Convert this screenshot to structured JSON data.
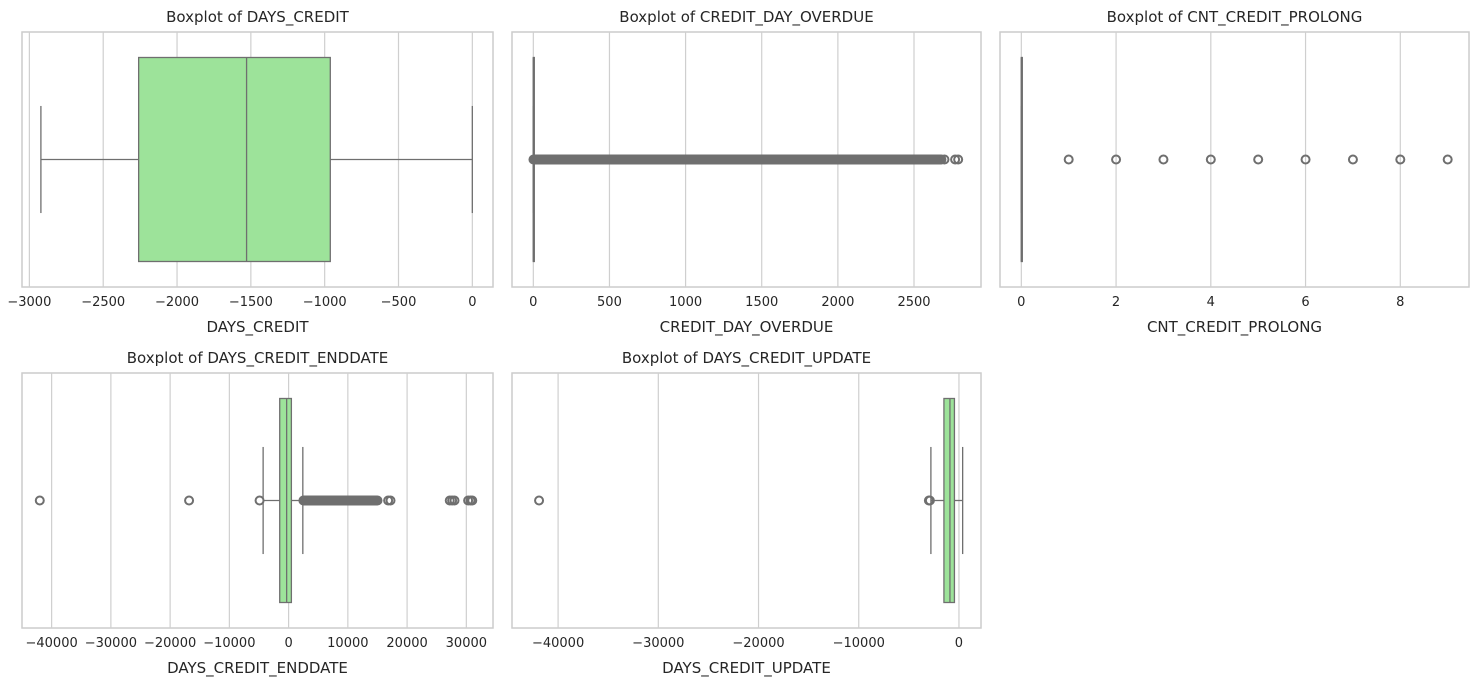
{
  "style": {
    "box_color": "#9de39a",
    "line_color": "#6f6f6f",
    "grid_color": "#cfcfcf"
  },
  "chart_data": [
    {
      "type": "box",
      "title": "Boxplot of DAYS_CREDIT",
      "xlabel": "DAYS_CREDIT",
      "xlim": [
        -3050,
        140
      ],
      "ticks": [
        -3000,
        -2500,
        -2000,
        -1500,
        -1000,
        -500,
        0
      ],
      "tick_labels": [
        "−3000",
        "−2500",
        "−2000",
        "−1500",
        "−1000",
        "−500",
        "0"
      ],
      "whisker_low": -2922,
      "q1": -2260,
      "median": -1529,
      "q3": -962,
      "whisker_high": 0,
      "fliers": [],
      "flier_band": null
    },
    {
      "type": "box",
      "title": "Boxplot of CREDIT_DAY_OVERDUE",
      "xlabel": "CREDIT_DAY_OVERDUE",
      "xlim": [
        -140,
        2940
      ],
      "ticks": [
        0,
        500,
        1000,
        1500,
        2000,
        2500
      ],
      "tick_labels": [
        "0",
        "500",
        "1000",
        "1500",
        "2000",
        "2500"
      ],
      "whisker_low": 0,
      "q1": 0,
      "median": 0,
      "q3": 0,
      "whisker_high": 0,
      "fliers": [
        2700,
        2770,
        2790
      ],
      "flier_band": [
        1,
        2680
      ]
    },
    {
      "type": "box",
      "title": "Boxplot of CNT_CREDIT_PROLONG",
      "xlabel": "CNT_CREDIT_PROLONG",
      "xlim": [
        -0.45,
        9.45
      ],
      "ticks": [
        0,
        2,
        4,
        6,
        8
      ],
      "tick_labels": [
        "0",
        "2",
        "4",
        "6",
        "8"
      ],
      "whisker_low": 0,
      "q1": 0,
      "median": 0,
      "q3": 0,
      "whisker_high": 0,
      "fliers": [
        1,
        2,
        3,
        4,
        5,
        6,
        7,
        8,
        9
      ],
      "flier_band": null
    },
    {
      "type": "box",
      "title": "Boxplot of DAYS_CREDIT_ENDDATE",
      "xlabel": "DAYS_CREDIT_ENDDATE",
      "xlim": [
        -45000,
        34500
      ],
      "ticks": [
        -40000,
        -30000,
        -20000,
        -10000,
        0,
        10000,
        20000,
        30000
      ],
      "tick_labels": [
        "−40000",
        "−30000",
        "−20000",
        "−10000",
        "0",
        "10000",
        "20000",
        "30000"
      ],
      "whisker_low": -4300,
      "q1": -1500,
      "median": -330,
      "q3": 470,
      "whisker_high": 2400,
      "fliers": [
        -42000,
        -16800,
        -4900,
        16800,
        17200,
        27200,
        27600,
        28000,
        30300,
        30700,
        31000
      ],
      "flier_band": [
        2500,
        15000
      ]
    },
    {
      "type": "box",
      "title": "Boxplot of DAYS_CREDIT_UPDATE",
      "xlabel": "DAYS_CREDIT_UPDATE",
      "xlim": [
        -44600,
        2200
      ],
      "ticks": [
        -40000,
        -30000,
        -20000,
        -10000,
        0
      ],
      "tick_labels": [
        "−40000",
        "−30000",
        "−20000",
        "−10000",
        "0"
      ],
      "whisker_low": -2800,
      "q1": -1500,
      "median": -900,
      "q3": -450,
      "whisker_high": 370,
      "fliers": [
        -41900,
        -2900,
        -3000
      ],
      "flier_band": null
    }
  ]
}
